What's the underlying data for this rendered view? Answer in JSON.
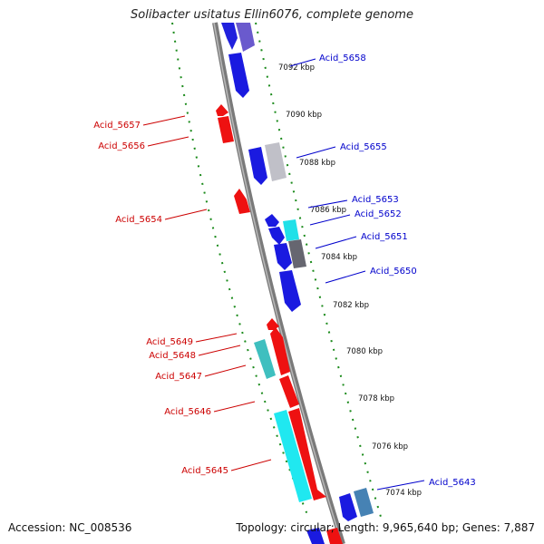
{
  "title": "Solibacter usitatus Ellin6076, complete genome",
  "accession": "Accession: NC_008536",
  "summary": "Topology: circular; Length: 9,965,640 bp; Genes: 7,887",
  "colors": {
    "forward_gene": "#0000ee",
    "reverse_gene": "#ee0000",
    "backbone": "#888888",
    "ticks": "#1a8a1a",
    "forward_label": "#0000cc",
    "reverse_label": "#cc0000"
  },
  "ticks": [
    "7074 kbp",
    "7076 kbp",
    "7078 kbp",
    "7080 kbp",
    "7082 kbp",
    "7084 kbp",
    "7086 kbp",
    "7088 kbp",
    "7090 kbp",
    "7092 kbp"
  ],
  "forward_labels": [
    "Acid_5658",
    "Acid_5655",
    "Acid_5653",
    "Acid_5652",
    "Acid_5651",
    "Acid_5650",
    "Acid_5643"
  ],
  "reverse_labels": [
    "Acid_5657",
    "Acid_5656",
    "Acid_5654",
    "Acid_5649",
    "Acid_5648",
    "Acid_5647",
    "Acid_5646",
    "Acid_5645"
  ]
}
